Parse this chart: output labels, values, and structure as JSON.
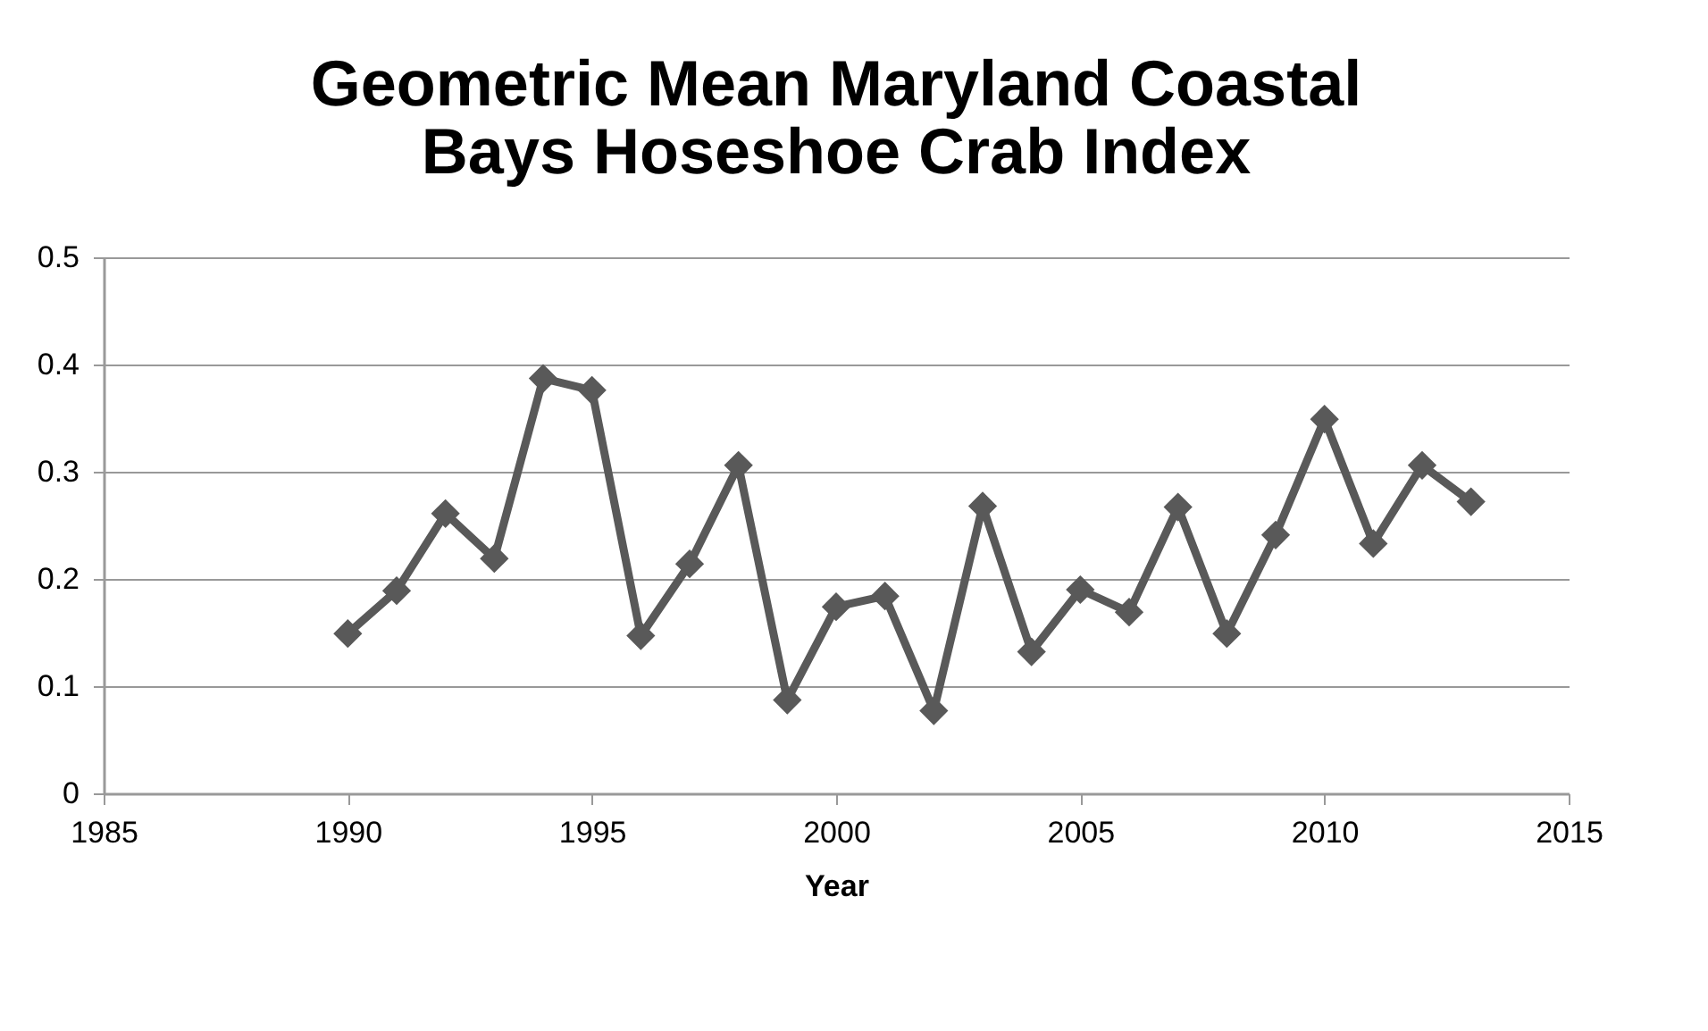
{
  "chart_data": {
    "type": "line",
    "title": [
      "Geometric Mean Maryland Coastal",
      "Bays Hoseshoe Crab Index"
    ],
    "xlabel": "Year",
    "x": [
      1990,
      1991,
      1992,
      1993,
      1994,
      1995,
      1996,
      1997,
      1998,
      1999,
      2000,
      2001,
      2002,
      2003,
      2004,
      2005,
      2006,
      2007,
      2008,
      2009,
      2010,
      2011,
      2012,
      2013
    ],
    "series": [
      {
        "color": "#595959",
        "values": [
          0.149,
          0.189,
          0.261,
          0.219,
          0.387,
          0.376,
          0.147,
          0.214,
          0.306,
          0.087,
          0.174,
          0.184,
          0.077,
          0.268,
          0.132,
          0.19,
          0.169,
          0.267,
          0.149,
          0.241,
          0.349,
          0.233,
          0.306,
          0.272
        ]
      }
    ],
    "xlim": [
      1985,
      2015
    ],
    "xticks": [
      1985,
      1990,
      1995,
      2000,
      2005,
      2010,
      2015
    ],
    "ylim": [
      0,
      0.5
    ],
    "yticks": [
      0,
      0.1,
      0.2,
      0.3,
      0.4,
      0.5
    ],
    "grid": "y",
    "marker": "diamond",
    "line_style": "solid"
  }
}
